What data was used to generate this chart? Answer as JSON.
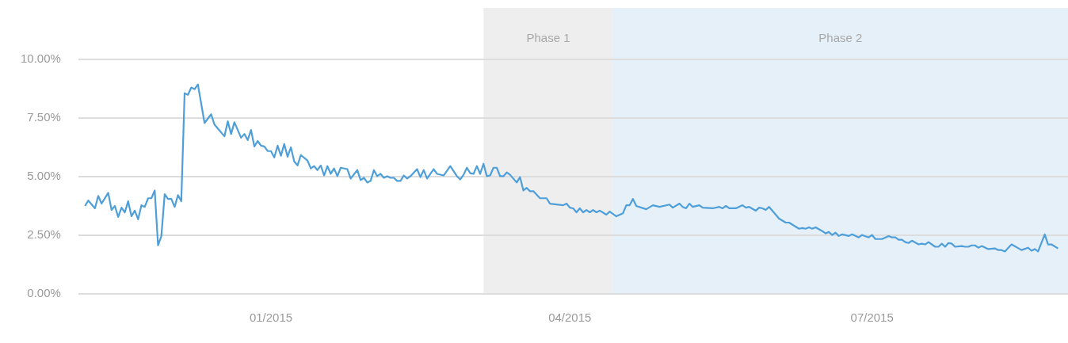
{
  "chart_data": {
    "type": "line",
    "x": [
      "2014-11-06",
      "2014-11-07",
      "2014-11-09",
      "2014-11-10",
      "2014-11-11",
      "2014-11-13",
      "2014-11-14",
      "2014-11-15",
      "2014-11-16",
      "2014-11-17",
      "2014-11-18",
      "2014-11-19",
      "2014-11-20",
      "2014-11-21",
      "2014-11-22",
      "2014-11-23",
      "2014-11-24",
      "2014-11-25",
      "2014-11-26",
      "2014-11-27",
      "2014-11-28",
      "2014-11-29",
      "2014-11-30",
      "2014-12-01",
      "2014-12-02",
      "2014-12-03",
      "2014-12-04",
      "2014-12-05",
      "2014-12-06",
      "2014-12-07",
      "2014-12-08",
      "2014-12-09",
      "2014-12-10",
      "2014-12-12",
      "2014-12-14",
      "2014-12-15",
      "2014-12-18",
      "2014-12-19",
      "2014-12-20",
      "2014-12-21",
      "2014-12-23",
      "2014-12-24",
      "2014-12-25",
      "2014-12-26",
      "2014-12-27",
      "2014-12-28",
      "2014-12-29",
      "2014-12-30",
      "2014-12-31",
      "2015-01-01",
      "2015-01-02",
      "2015-01-03",
      "2015-01-04",
      "2015-01-05",
      "2015-01-06",
      "2015-01-07",
      "2015-01-08",
      "2015-01-09",
      "2015-01-10",
      "2015-01-12",
      "2015-01-13",
      "2015-01-14",
      "2015-01-15",
      "2015-01-16",
      "2015-01-17",
      "2015-01-18",
      "2015-01-19",
      "2015-01-20",
      "2015-01-21",
      "2015-01-22",
      "2015-01-24",
      "2015-01-25",
      "2015-01-27",
      "2015-01-28",
      "2015-01-29",
      "2015-01-30",
      "2015-01-31",
      "2015-02-01",
      "2015-02-02",
      "2015-02-03",
      "2015-02-04",
      "2015-02-05",
      "2015-02-06",
      "2015-02-07",
      "2015-02-08",
      "2015-02-09",
      "2015-02-10",
      "2015-02-11",
      "2015-02-12",
      "2015-02-14",
      "2015-02-15",
      "2015-02-16",
      "2015-02-17",
      "2015-02-19",
      "2015-02-20",
      "2015-02-22",
      "2015-02-24",
      "2015-02-26",
      "2015-02-27",
      "2015-02-28",
      "2015-03-01",
      "2015-03-02",
      "2015-03-03",
      "2015-03-04",
      "2015-03-05",
      "2015-03-06",
      "2015-03-07",
      "2015-03-08",
      "2015-03-09",
      "2015-03-10",
      "2015-03-11",
      "2015-03-12",
      "2015-03-13",
      "2015-03-14",
      "2015-03-16",
      "2015-03-17",
      "2015-03-18",
      "2015-03-19",
      "2015-03-20",
      "2015-03-21",
      "2015-03-23",
      "2015-03-25",
      "2015-03-26",
      "2015-03-30",
      "2015-03-31",
      "2015-04-01",
      "2015-04-02",
      "2015-04-03",
      "2015-04-04",
      "2015-04-05",
      "2015-04-06",
      "2015-04-07",
      "2015-04-08",
      "2015-04-09",
      "2015-04-10",
      "2015-04-12",
      "2015-04-13",
      "2015-04-15",
      "2015-04-17",
      "2015-04-18",
      "2015-04-19",
      "2015-04-20",
      "2015-04-21",
      "2015-04-24",
      "2015-04-26",
      "2015-04-28",
      "2015-05-01",
      "2015-05-02",
      "2015-05-04",
      "2015-05-05",
      "2015-05-06",
      "2015-05-07",
      "2015-05-08",
      "2015-05-10",
      "2015-05-11",
      "2015-05-14",
      "2015-05-16",
      "2015-05-17",
      "2015-05-18",
      "2015-05-19",
      "2015-05-21",
      "2015-05-23",
      "2015-05-24",
      "2015-05-25",
      "2015-05-27",
      "2015-05-28",
      "2015-05-29",
      "2015-05-30",
      "2015-05-31",
      "2015-06-02",
      "2015-06-03",
      "2015-06-05",
      "2015-06-06",
      "2015-06-09",
      "2015-06-10",
      "2015-06-11",
      "2015-06-12",
      "2015-06-13",
      "2015-06-14",
      "2015-06-16",
      "2015-06-17",
      "2015-06-18",
      "2015-06-19",
      "2015-06-20",
      "2015-06-21",
      "2015-06-22",
      "2015-06-24",
      "2015-06-25",
      "2015-06-27",
      "2015-06-28",
      "2015-06-30",
      "2015-07-01",
      "2015-07-02",
      "2015-07-04",
      "2015-07-06",
      "2015-07-07",
      "2015-07-08",
      "2015-07-09",
      "2015-07-10",
      "2015-07-11",
      "2015-07-12",
      "2015-07-13",
      "2015-07-15",
      "2015-07-16",
      "2015-07-17",
      "2015-07-18",
      "2015-07-20",
      "2015-07-21",
      "2015-07-22",
      "2015-07-23",
      "2015-07-24",
      "2015-07-25",
      "2015-07-26",
      "2015-07-28",
      "2015-07-29",
      "2015-07-30",
      "2015-07-31",
      "2015-08-01",
      "2015-08-02",
      "2015-08-03",
      "2015-08-05",
      "2015-08-07",
      "2015-08-08",
      "2015-08-09",
      "2015-08-10",
      "2015-08-12",
      "2015-08-15",
      "2015-08-17",
      "2015-08-18",
      "2015-08-19",
      "2015-08-20",
      "2015-08-22",
      "2015-08-23",
      "2015-08-24",
      "2015-08-26"
    ],
    "series": [
      {
        "color": "#4e9fd9",
        "values": [
          3.75,
          3.98,
          3.65,
          4.18,
          3.85,
          4.31,
          3.58,
          3.75,
          3.28,
          3.68,
          3.48,
          3.95,
          3.31,
          3.55,
          3.18,
          3.78,
          3.71,
          4.08,
          4.08,
          4.41,
          2.07,
          2.47,
          4.25,
          4.05,
          4.05,
          3.71,
          4.21,
          3.95,
          8.56,
          8.49,
          8.8,
          8.73,
          8.93,
          7.29,
          7.66,
          7.22,
          6.72,
          7.36,
          6.82,
          7.32,
          6.66,
          6.82,
          6.56,
          6.99,
          6.29,
          6.52,
          6.32,
          6.29,
          6.09,
          6.09,
          5.82,
          6.32,
          5.89,
          6.39,
          5.85,
          6.25,
          5.65,
          5.48,
          5.92,
          5.69,
          5.35,
          5.45,
          5.28,
          5.48,
          5.05,
          5.45,
          5.12,
          5.35,
          5.02,
          5.38,
          5.32,
          4.92,
          5.28,
          4.85,
          4.95,
          4.75,
          4.82,
          5.28,
          5.02,
          5.12,
          4.95,
          5.02,
          4.95,
          4.95,
          4.82,
          4.82,
          5.05,
          4.92,
          5.02,
          5.32,
          4.98,
          5.28,
          4.92,
          5.32,
          5.12,
          5.05,
          5.45,
          5.02,
          4.88,
          5.08,
          5.38,
          5.15,
          5.12,
          5.45,
          5.12,
          5.55,
          5.02,
          5.05,
          5.38,
          5.38,
          5.02,
          5.02,
          5.18,
          5.08,
          4.75,
          4.98,
          4.41,
          4.52,
          4.38,
          4.38,
          4.08,
          4.08,
          3.85,
          3.78,
          3.85,
          3.68,
          3.65,
          3.48,
          3.65,
          3.48,
          3.58,
          3.48,
          3.58,
          3.48,
          3.55,
          3.38,
          3.51,
          3.31,
          3.44,
          3.78,
          3.78,
          4.05,
          3.75,
          3.61,
          3.78,
          3.71,
          3.81,
          3.68,
          3.85,
          3.71,
          3.65,
          3.85,
          3.71,
          3.78,
          3.68,
          3.65,
          3.71,
          3.65,
          3.75,
          3.65,
          3.65,
          3.78,
          3.68,
          3.71,
          3.55,
          3.68,
          3.65,
          3.58,
          3.71,
          3.38,
          3.21,
          3.04,
          3.04,
          2.78,
          2.81,
          2.78,
          2.84,
          2.78,
          2.84,
          2.68,
          2.58,
          2.64,
          2.51,
          2.61,
          2.47,
          2.54,
          2.47,
          2.54,
          2.41,
          2.51,
          2.41,
          2.51,
          2.34,
          2.34,
          2.47,
          2.41,
          2.41,
          2.31,
          2.31,
          2.21,
          2.17,
          2.27,
          2.11,
          2.14,
          2.11,
          2.21,
          2.01,
          2.01,
          2.14,
          2.01,
          2.17,
          2.14,
          2.01,
          2.04,
          2.01,
          2.01,
          2.07,
          2.07,
          1.97,
          2.04,
          1.91,
          1.94,
          1.87,
          1.87,
          1.81,
          2.11,
          1.87,
          1.97,
          1.84,
          1.91,
          1.81,
          2.54,
          2.11,
          2.11,
          1.94
        ]
      }
    ],
    "xlim": [
      "2014-11-04",
      "2015-08-29"
    ],
    "xticks": [
      {
        "value": "2015-01-01",
        "label": "01/2015"
      },
      {
        "value": "2015-04-01",
        "label": "04/2015"
      },
      {
        "value": "2015-07-01",
        "label": "07/2015"
      }
    ],
    "ylim": [
      0,
      10
    ],
    "yticks": [
      {
        "value": 0,
        "label": "0.00%"
      },
      {
        "value": 2.5,
        "label": "2.50%"
      },
      {
        "value": 5,
        "label": "5.00%"
      },
      {
        "value": 7.5,
        "label": "7.50%"
      },
      {
        "value": 10,
        "label": "10.00%"
      }
    ],
    "grid": "y",
    "marker": "none",
    "line_style": "solid",
    "bands": [
      {
        "axis": "x",
        "from": "2015-03-06",
        "to": "2015-04-14",
        "label": "Phase 1",
        "color": "#eeeeee"
      },
      {
        "axis": "x",
        "from": "2015-04-14",
        "to": "2015-08-29",
        "label": "Phase 2",
        "color": "#e6f0f9"
      }
    ]
  }
}
